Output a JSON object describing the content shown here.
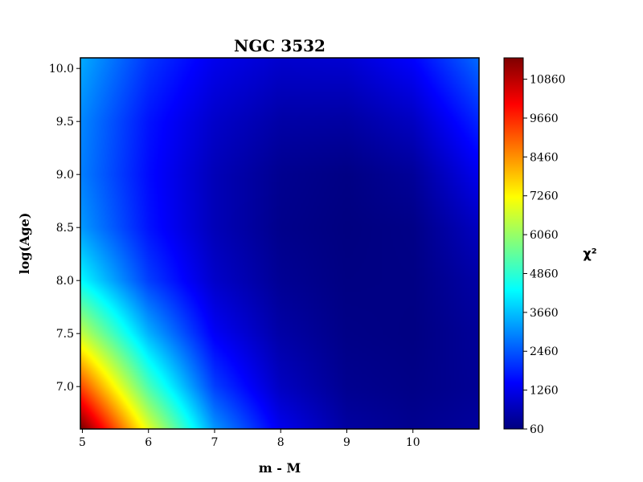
{
  "chart_data": {
    "type": "heatmap",
    "title": "NGC 3532",
    "xlabel": "m - M",
    "ylabel": "log(Age)",
    "xlim": [
      4.97,
      11.0
    ],
    "ylim": [
      6.6,
      10.1
    ],
    "xticks": [
      5,
      6,
      7,
      8,
      9,
      10
    ],
    "yticks": [
      7.0,
      7.5,
      8.0,
      8.5,
      9.0,
      9.5,
      10.0
    ],
    "colormap": "jet",
    "colorbar": {
      "label": "χ²",
      "range": [
        60,
        11520
      ],
      "ticks": [
        60,
        1260,
        2460,
        3660,
        4860,
        6060,
        7260,
        8460,
        9660,
        10860
      ]
    },
    "minimum": {
      "x": 8.4,
      "y": 8.6,
      "value": 60
    },
    "z_grid": {
      "x": [
        5,
        6,
        7,
        8,
        9,
        10,
        11
      ],
      "y": [
        6.6,
        7.0,
        7.5,
        8.0,
        8.5,
        9.0,
        9.5,
        10.1
      ],
      "values": [
        [
          11500,
          6900,
          3200,
          1300,
          450,
          250,
          400
        ],
        [
          9200,
          5200,
          2200,
          800,
          250,
          150,
          300
        ],
        [
          6500,
          3500,
          1400,
          500,
          150,
          100,
          350
        ],
        [
          4300,
          2200,
          900,
          300,
          100,
          120,
          500
        ],
        [
          3200,
          1700,
          700,
          200,
          70,
          150,
          800
        ],
        [
          2900,
          1600,
          700,
          250,
          120,
          350,
          1300
        ],
        [
          3000,
          1700,
          900,
          500,
          450,
          800,
          1900
        ],
        [
          3400,
          2100,
          1300,
          950,
          1000,
          1500,
          2700
        ]
      ]
    }
  },
  "colors": {
    "jet": [
      "#00007f",
      "#0000ff",
      "#007fff",
      "#00ffff",
      "#7fff7f",
      "#ffff00",
      "#ff7f00",
      "#ff0000",
      "#7f0000"
    ]
  }
}
